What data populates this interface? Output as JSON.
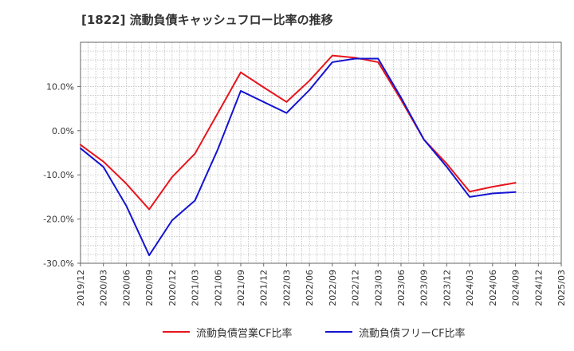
{
  "chart_data": {
    "type": "line",
    "title": "[1822]  流動負債キャッシュフロー比率の推移",
    "xlabel": "",
    "ylabel": "",
    "ylim": [
      -30,
      20
    ],
    "yticks": [
      10,
      0,
      -10,
      -20,
      -30
    ],
    "ytick_labels": [
      "10.0%",
      "0.0%",
      "-10.0%",
      "-20.0%",
      "-30.0%"
    ],
    "x_tick_labels": [
      "2019/12",
      "2020/03",
      "2020/06",
      "2020/09",
      "2020/12",
      "2021/03",
      "2021/06",
      "2021/09",
      "2021/12",
      "2022/03",
      "2022/06",
      "2022/09",
      "2022/12",
      "2023/03",
      "2023/06",
      "2023/09",
      "2023/12",
      "2024/03",
      "2024/06",
      "2024/09",
      "2024/12",
      "2025/03"
    ],
    "grid": true,
    "legend_position": "bottom",
    "series": [
      {
        "name": "流動負債営業CF比率",
        "color": "#e8141c",
        "values": [
          -3.2,
          -7.0,
          -12.0,
          -17.8,
          -10.5,
          -5.2,
          4.0,
          13.2,
          9.8,
          6.5,
          11.3,
          17.0,
          16.5,
          15.5,
          7.0,
          -2.0,
          -7.5,
          -13.8,
          -12.7,
          -11.8,
          null,
          null
        ]
      },
      {
        "name": "流動負債フリーCF比率",
        "color": "#1414d2",
        "values": [
          -4.0,
          -8.2,
          -17.0,
          -28.2,
          -20.3,
          -15.8,
          -4.2,
          9.0,
          6.5,
          4.0,
          9.2,
          15.5,
          16.3,
          16.3,
          7.5,
          -2.0,
          -8.2,
          -15.0,
          -14.2,
          -13.9,
          null,
          null
        ]
      }
    ]
  }
}
